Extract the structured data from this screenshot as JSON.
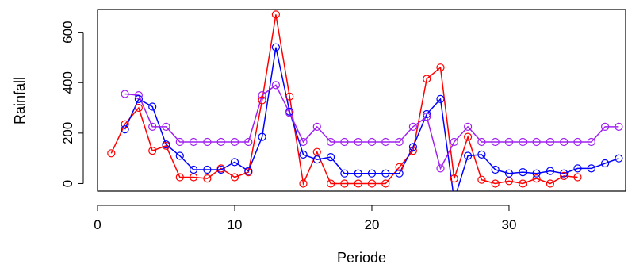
{
  "chart_data": {
    "type": "line",
    "title": "",
    "xlabel": "Periode",
    "ylabel": "Rainfall",
    "xlim": [
      0,
      38.5
    ],
    "ylim": [
      -30,
      690
    ],
    "xticks": [
      0,
      10,
      20,
      30
    ],
    "yticks": [
      0,
      200,
      400,
      600
    ],
    "grid": false,
    "legend": "none",
    "series": [
      {
        "color": "#ff0000",
        "x": [
          1,
          2,
          3,
          4,
          5,
          6,
          7,
          8,
          9,
          10,
          11,
          12,
          13,
          14,
          15,
          16,
          17,
          18,
          19,
          20,
          21,
          22,
          23,
          24,
          25,
          26,
          27,
          28,
          29,
          30,
          31,
          32,
          33,
          34,
          35
        ],
        "values": [
          120,
          235,
          300,
          130,
          150,
          25,
          25,
          20,
          60,
          25,
          45,
          330,
          670,
          345,
          0,
          125,
          0,
          0,
          0,
          0,
          0,
          65,
          130,
          415,
          460,
          20,
          185,
          15,
          0,
          10,
          0,
          20,
          0,
          30,
          25
        ]
      },
      {
        "color": "#0000ff",
        "x": [
          2,
          3,
          4,
          5,
          6,
          7,
          8,
          9,
          10,
          11,
          12,
          13,
          14,
          15,
          16,
          17,
          18,
          19,
          20,
          21,
          22,
          23,
          24,
          25,
          26,
          27,
          28,
          29,
          30,
          31,
          32,
          33,
          34,
          35,
          36,
          37,
          38
        ],
        "values": [
          215,
          335,
          305,
          155,
          110,
          55,
          55,
          55,
          85,
          50,
          185,
          540,
          285,
          115,
          95,
          105,
          40,
          40,
          40,
          40,
          40,
          145,
          275,
          335,
          -65,
          110,
          115,
          55,
          40,
          45,
          40,
          50,
          40,
          60,
          60,
          80,
          100
        ]
      },
      {
        "color": "#a020f0",
        "x": [
          2,
          3,
          4,
          5,
          6,
          7,
          8,
          9,
          10,
          11,
          12,
          13,
          14,
          15,
          16,
          17,
          18,
          19,
          20,
          21,
          22,
          23,
          24,
          25,
          26,
          27,
          28,
          29,
          30,
          31,
          32,
          33,
          34,
          35,
          36,
          37,
          38
        ],
        "values": [
          355,
          350,
          225,
          225,
          165,
          165,
          165,
          165,
          165,
          165,
          350,
          390,
          280,
          165,
          225,
          165,
          165,
          165,
          165,
          165,
          165,
          225,
          265,
          60,
          165,
          225,
          165,
          165,
          165,
          165,
          165,
          165,
          165,
          165,
          165,
          225,
          225
        ]
      }
    ]
  }
}
